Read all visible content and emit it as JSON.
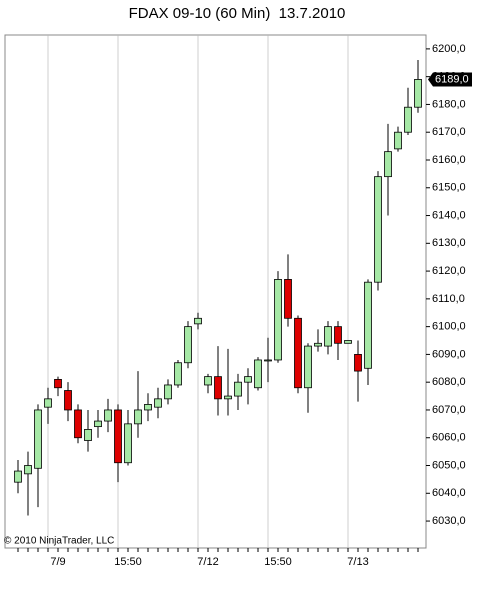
{
  "chart_data": {
    "type": "candlestick",
    "title": "FDAX 09-10 (60 Min)  13.7.2010",
    "annotation": "© 2010 NinjaTrader, LLC",
    "last_price": {
      "value": 6189,
      "label": "6189,0"
    },
    "up_color": "#a6e8a6",
    "down_color": "#dd0000",
    "categories": [
      null,
      null,
      null,
      null,
      "7/9",
      null,
      null,
      null,
      null,
      null,
      null,
      "15:50",
      null,
      null,
      null,
      null,
      null,
      null,
      null,
      "7/12",
      null,
      null,
      null,
      null,
      null,
      null,
      "15:50",
      null,
      null,
      null,
      null,
      null,
      null,
      null,
      "7/13",
      null,
      null,
      null,
      null,
      null,
      null
    ],
    "open": [
      6044,
      6047,
      6049,
      6071,
      6081,
      6077,
      6070,
      6059,
      6064,
      6066,
      6070,
      6051,
      6065,
      6070,
      6071,
      6074,
      6079,
      6087,
      6101,
      6079,
      6082,
      6074,
      6075,
      6080,
      6078,
      6088,
      6088,
      6117,
      6103,
      6078,
      6093,
      6093,
      6100,
      6094,
      6090,
      6085,
      6116,
      6154,
      6164,
      6170,
      6179
    ],
    "high": [
      6052,
      6055,
      6072,
      6078,
      6082,
      6080,
      6072,
      6070,
      6070,
      6074,
      6072,
      6070,
      6084,
      6076,
      6078,
      6081,
      6088,
      6102,
      6105,
      6083,
      6093,
      6092,
      6083,
      6085,
      6089,
      6096,
      6120,
      6126,
      6104,
      6094,
      6099,
      6102,
      6102,
      6095,
      6095,
      6117,
      6156,
      6173,
      6172,
      6186,
      6196
    ],
    "low": [
      6040,
      6032,
      6035,
      6065,
      6075,
      6066,
      6058,
      6055,
      6060,
      6062,
      6044,
      6050,
      6060,
      6066,
      6067,
      6072,
      6078,
      6085,
      6099,
      6076,
      6068,
      6068,
      6070,
      6072,
      6077,
      6080,
      6087,
      6100,
      6076,
      6069,
      6091,
      6090,
      6088,
      6094,
      6073,
      6079,
      6113,
      6140,
      6163,
      6169,
      6177
    ],
    "close": [
      6048,
      6050,
      6070,
      6074,
      6078,
      6070,
      6060,
      6063,
      6066,
      6070,
      6051,
      6065,
      6070,
      6072,
      6074,
      6079,
      6087,
      6100,
      6103,
      6082,
      6074,
      6075,
      6080,
      6082,
      6088,
      6088,
      6117,
      6103,
      6078,
      6093,
      6094,
      6100,
      6094,
      6095,
      6084,
      6116,
      6154,
      6163,
      6170,
      6179,
      6189
    ],
    "ylim": [
      6020.3,
      6205
    ],
    "yticks": [
      {
        "value": 6030,
        "label": "6030,0"
      },
      {
        "value": 6040,
        "label": "6040,0"
      },
      {
        "value": 6050,
        "label": "6050,0"
      },
      {
        "value": 6060,
        "label": "6060,0"
      },
      {
        "value": 6070,
        "label": "6070,0"
      },
      {
        "value": 6080,
        "label": "6080,0"
      },
      {
        "value": 6090,
        "label": "6090,0"
      },
      {
        "value": 6100,
        "label": "6100,0"
      },
      {
        "value": 6110,
        "label": "6110,0"
      },
      {
        "value": 6120,
        "label": "6120,0"
      },
      {
        "value": 6130,
        "label": "6130,0"
      },
      {
        "value": 6140,
        "label": "6140,0"
      },
      {
        "value": 6150,
        "label": "6150,0"
      },
      {
        "value": 6160,
        "label": "6160,0"
      },
      {
        "value": 6170,
        "label": "6170,0"
      },
      {
        "value": 6180,
        "label": "6180,0"
      },
      {
        "value": 6190,
        "label": "6190,0"
      },
      {
        "value": 6200,
        "label": "6200,0"
      }
    ]
  }
}
